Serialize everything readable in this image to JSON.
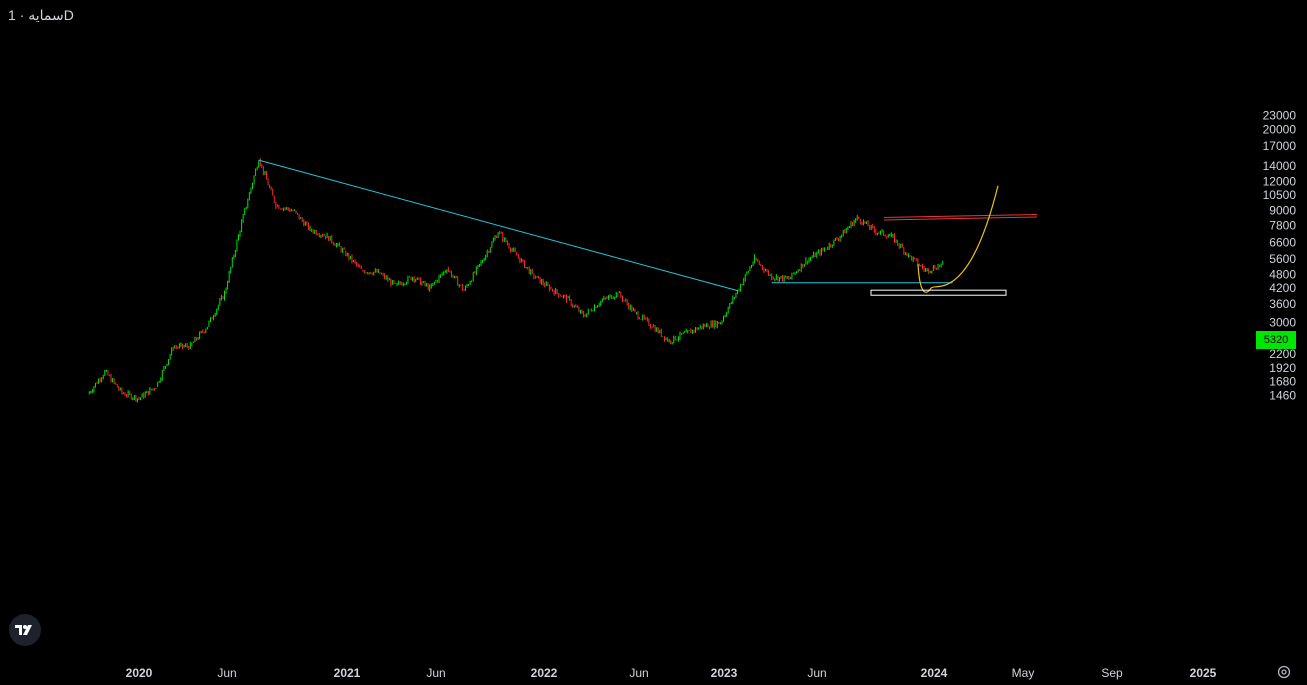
{
  "symbol_title": "سمایه · 1D",
  "last_price_label": "5320",
  "colors": {
    "background": "#000000",
    "up": "#00e600",
    "down": "#ff2a2a",
    "trendline": "#26c6da",
    "support": "#26c6da",
    "resistance": "#e53935",
    "projection": "#f0c419",
    "target_box": "#ffffff"
  },
  "icons": {
    "logo": "tradingview-logo-icon",
    "settings": "gear-icon"
  },
  "chart_data": {
    "type": "candlestick",
    "scale": "log",
    "grid": false,
    "y_ticks": [
      "23000",
      "20000",
      "17000",
      "14000",
      "12000",
      "10500",
      "9000",
      "7800",
      "6600",
      "5600",
      "4800",
      "4200",
      "3600",
      "3000",
      "2600",
      "2200",
      "1920",
      "1680",
      "1460"
    ],
    "x_ticks": [
      {
        "label": "2020",
        "major": true
      },
      {
        "label": "Jun",
        "major": false
      },
      {
        "label": "2021",
        "major": true
      },
      {
        "label": "Jun",
        "major": false
      },
      {
        "label": "2022",
        "major": true
      },
      {
        "label": "Jun",
        "major": false
      },
      {
        "label": "2023",
        "major": true
      },
      {
        "label": "Jun",
        "major": false
      },
      {
        "label": "2024",
        "major": true
      },
      {
        "label": "May",
        "major": false
      },
      {
        "label": "Sep",
        "major": false
      },
      {
        "label": "2025",
        "major": true
      }
    ],
    "price_path": [
      [
        "2019-10",
        1480
      ],
      [
        "2019-11",
        1850
      ],
      [
        "2019-12",
        1500
      ],
      [
        "2020-01",
        1420
      ],
      [
        "2020-02",
        1600
      ],
      [
        "2020-03",
        2350
      ],
      [
        "2020-04",
        2380
      ],
      [
        "2020-05",
        2900
      ],
      [
        "2020-06",
        4000
      ],
      [
        "2020-07",
        8000
      ],
      [
        "2020-08",
        15000
      ],
      [
        "2020-09",
        9500
      ],
      [
        "2020-10",
        9000
      ],
      [
        "2020-11",
        7500
      ],
      [
        "2020-12",
        7000
      ],
      [
        "2021-01",
        6000
      ],
      [
        "2021-02",
        5000
      ],
      [
        "2021-03",
        4900
      ],
      [
        "2021-04",
        4300
      ],
      [
        "2021-05",
        4700
      ],
      [
        "2021-06",
        4200
      ],
      [
        "2021-07",
        5100
      ],
      [
        "2021-08",
        4100
      ],
      [
        "2021-09",
        5400
      ],
      [
        "2021-10",
        7300
      ],
      [
        "2021-11",
        5900
      ],
      [
        "2021-12",
        4800
      ],
      [
        "2022-01",
        4200
      ],
      [
        "2022-02",
        3800
      ],
      [
        "2022-03",
        3200
      ],
      [
        "2022-04",
        3700
      ],
      [
        "2022-05",
        4000
      ],
      [
        "2022-06",
        3300
      ],
      [
        "2022-07",
        2900
      ],
      [
        "2022-08",
        2500
      ],
      [
        "2022-09",
        2700
      ],
      [
        "2022-10",
        2900
      ],
      [
        "2022-11",
        3000
      ],
      [
        "2022-12",
        4100
      ],
      [
        "2023-01",
        5600
      ],
      [
        "2023-02",
        4700
      ],
      [
        "2023-03",
        4600
      ],
      [
        "2023-04",
        5500
      ],
      [
        "2023-05",
        6100
      ],
      [
        "2023-06",
        7000
      ],
      [
        "2023-07",
        8400
      ],
      [
        "2023-08",
        7400
      ],
      [
        "2023-09",
        7000
      ],
      [
        "2023-10",
        5800
      ],
      [
        "2023-11",
        5000
      ],
      [
        "2023-12",
        5320
      ]
    ],
    "annotations": {
      "descending_trendline": [
        [
          "2020-08",
          14800
        ],
        [
          "2022-12",
          4100
        ]
      ],
      "support_line": {
        "from": "2023-02",
        "to": "2023-12",
        "price": 4430
      },
      "resistance_lines": [
        8500,
        8300
      ],
      "projection_curve": [
        [
          "2023-12",
          5320
        ],
        [
          "2024-01",
          4200
        ],
        [
          "2024-03",
          11500
        ]
      ],
      "target_box": {
        "from": "2023-10",
        "to": "2024-04",
        "price_top": 4120,
        "price_bottom": 3920
      }
    }
  }
}
